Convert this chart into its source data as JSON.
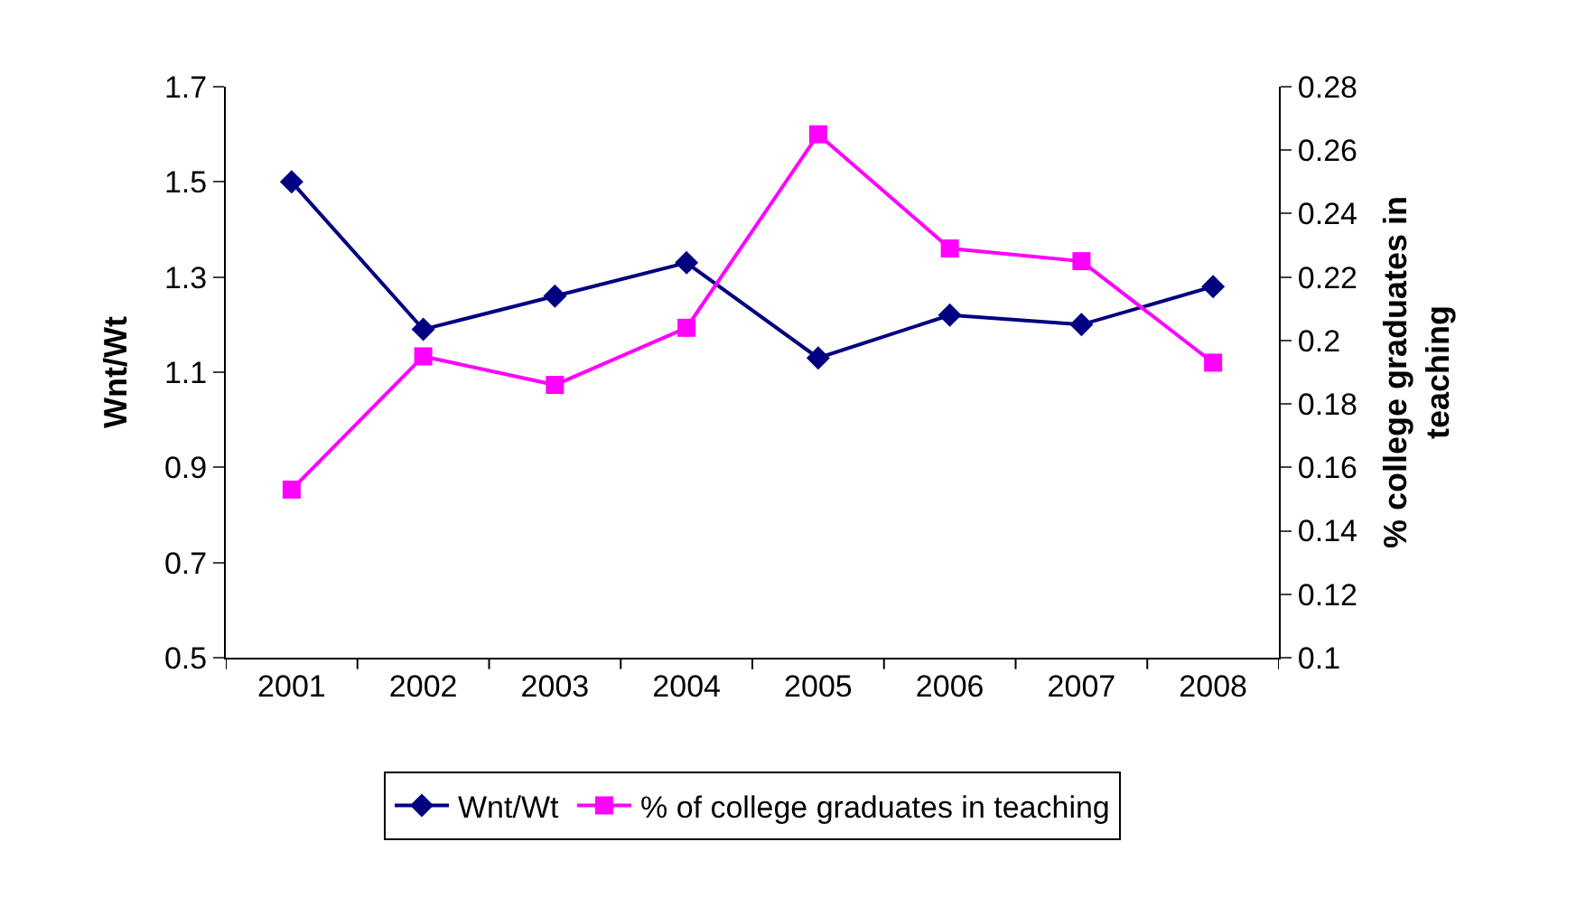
{
  "chart_data": {
    "type": "line",
    "ylabel": "Wnt/Wt",
    "y2label": "% college graduates in teaching",
    "categories": [
      "2001",
      "2002",
      "2003",
      "2004",
      "2005",
      "2006",
      "2007",
      "2008"
    ],
    "series": [
      {
        "name": "Wnt/Wt",
        "color": "#000080",
        "marker": "diamond",
        "values": [
          1.5,
          1.19,
          1.26,
          1.33,
          1.13,
          1.22,
          1.2,
          1.28
        ]
      },
      {
        "name": "% of college graduates in teaching",
        "color": "#ff00ff",
        "marker": "square",
        "axis": "y2",
        "values": [
          0.153,
          0.195,
          0.186,
          0.204,
          0.265,
          0.229,
          0.225,
          0.193
        ]
      }
    ],
    "ylim": [
      0.5,
      1.7
    ],
    "yticks": [
      0.5,
      0.7,
      0.9,
      1.1,
      1.3,
      1.5,
      1.7
    ],
    "y2lim": [
      0.1,
      0.28
    ],
    "y2ticks": [
      0.1,
      0.12,
      0.14,
      0.16,
      0.18,
      0.2,
      0.22,
      0.24,
      0.26,
      0.28
    ],
    "legend": "bottom",
    "line_style": "solid"
  }
}
